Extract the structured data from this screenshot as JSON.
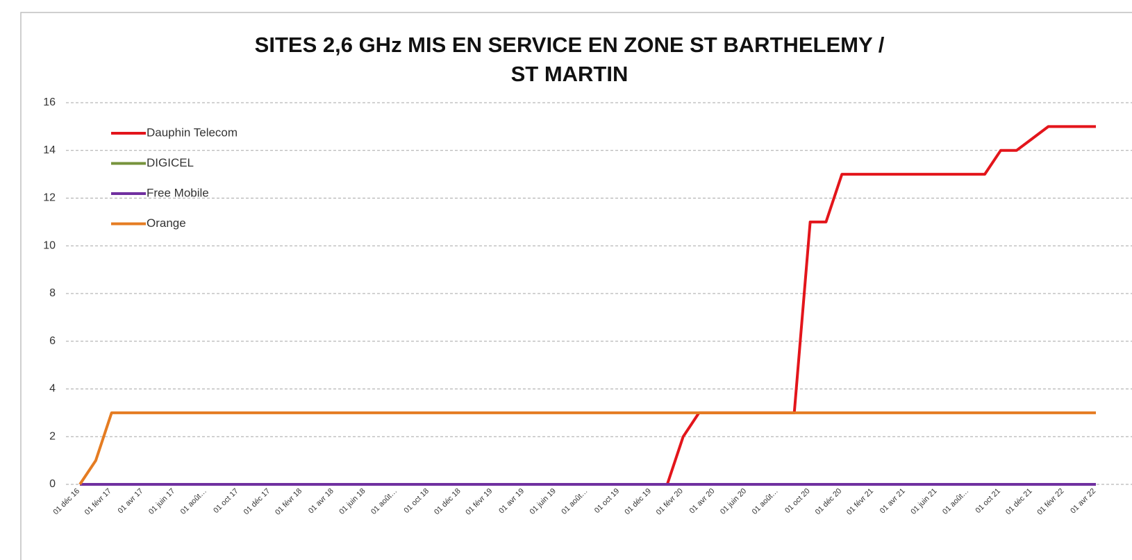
{
  "chart_data": {
    "type": "line",
    "title": [
      "SITES 2,6 GHz MIS EN SERVICE  EN ZONE ST BARTHELEMY /",
      "ST MARTIN"
    ],
    "categories": [
      "01 déc 16",
      null,
      "01 févr 17",
      null,
      "01 avr 17",
      null,
      "01 juin 17",
      null,
      "01 août…",
      null,
      "01 oct 17",
      null,
      "01 déc 17",
      null,
      "01 févr 18",
      null,
      "01 avr 18",
      null,
      "01 juin 18",
      null,
      "01 août…",
      null,
      "01 oct 18",
      null,
      "01 déc 18",
      null,
      "01 févr 19",
      null,
      "01 avr 19",
      null,
      "01 juin 19",
      null,
      "01 août…",
      null,
      "01 oct 19",
      null,
      "01 déc 19",
      null,
      "01 févr 20",
      null,
      "01 avr 20",
      null,
      "01 juin 20",
      null,
      "01 août…",
      null,
      "01 oct 20",
      null,
      "01 déc 20",
      null,
      "01 févr 21",
      null,
      "01 avr 21",
      null,
      "01 juin 21",
      null,
      "01 août…",
      null,
      "01 oct 21",
      null,
      "01 déc 21",
      null,
      "01 févr 22",
      null,
      "01 avr 22"
    ],
    "series": [
      {
        "name": "Dauphin Telecom",
        "color": "#e3151b",
        "values": [
          0,
          0,
          0,
          0,
          0,
          0,
          0,
          0,
          0,
          0,
          0,
          0,
          0,
          0,
          0,
          0,
          0,
          0,
          0,
          0,
          0,
          0,
          0,
          0,
          0,
          0,
          0,
          0,
          0,
          0,
          0,
          0,
          0,
          0,
          0,
          0,
          0,
          0,
          2,
          3,
          3,
          3,
          3,
          3,
          3,
          3,
          11,
          11,
          13,
          13,
          13,
          13,
          13,
          13,
          13,
          13,
          13,
          13,
          14,
          14,
          14.5,
          15,
          15,
          15,
          15
        ]
      },
      {
        "name": "DIGICEL",
        "color": "#77933c",
        "values": [
          0,
          0,
          0,
          0,
          0,
          0,
          0,
          0,
          0,
          0,
          0,
          0,
          0,
          0,
          0,
          0,
          0,
          0,
          0,
          0,
          0,
          0,
          0,
          0,
          0,
          0,
          0,
          0,
          0,
          0,
          0,
          0,
          0,
          0,
          0,
          0,
          0,
          0,
          0,
          0,
          0,
          0,
          0,
          0,
          0,
          0,
          0,
          0,
          0,
          0,
          0,
          0,
          0,
          0,
          0,
          0,
          0,
          0,
          0,
          0,
          0,
          0,
          0,
          0,
          0
        ]
      },
      {
        "name": "Free Mobile",
        "color": "#7030a0",
        "values": [
          0,
          0,
          0,
          0,
          0,
          0,
          0,
          0,
          0,
          0,
          0,
          0,
          0,
          0,
          0,
          0,
          0,
          0,
          0,
          0,
          0,
          0,
          0,
          0,
          0,
          0,
          0,
          0,
          0,
          0,
          0,
          0,
          0,
          0,
          0,
          0,
          0,
          0,
          0,
          0,
          0,
          0,
          0,
          0,
          0,
          0,
          0,
          0,
          0,
          0,
          0,
          0,
          0,
          0,
          0,
          0,
          0,
          0,
          0,
          0,
          0,
          0,
          0,
          0,
          0
        ]
      },
      {
        "name": "Orange",
        "color": "#e57c22",
        "values": [
          0,
          1,
          3,
          3,
          3,
          3,
          3,
          3,
          3,
          3,
          3,
          3,
          3,
          3,
          3,
          3,
          3,
          3,
          3,
          3,
          3,
          3,
          3,
          3,
          3,
          3,
          3,
          3,
          3,
          3,
          3,
          3,
          3,
          3,
          3,
          3,
          3,
          3,
          3,
          3,
          3,
          3,
          3,
          3,
          3,
          3,
          3,
          3,
          3,
          3,
          3,
          3,
          3,
          3,
          3,
          3,
          3,
          3,
          3,
          3,
          3,
          3,
          3,
          3,
          3
        ]
      }
    ],
    "ylim": [
      0,
      16
    ],
    "yticks": [
      0,
      2,
      4,
      6,
      8,
      10,
      12,
      14,
      16
    ],
    "grid": true,
    "legend": "top-left"
  }
}
